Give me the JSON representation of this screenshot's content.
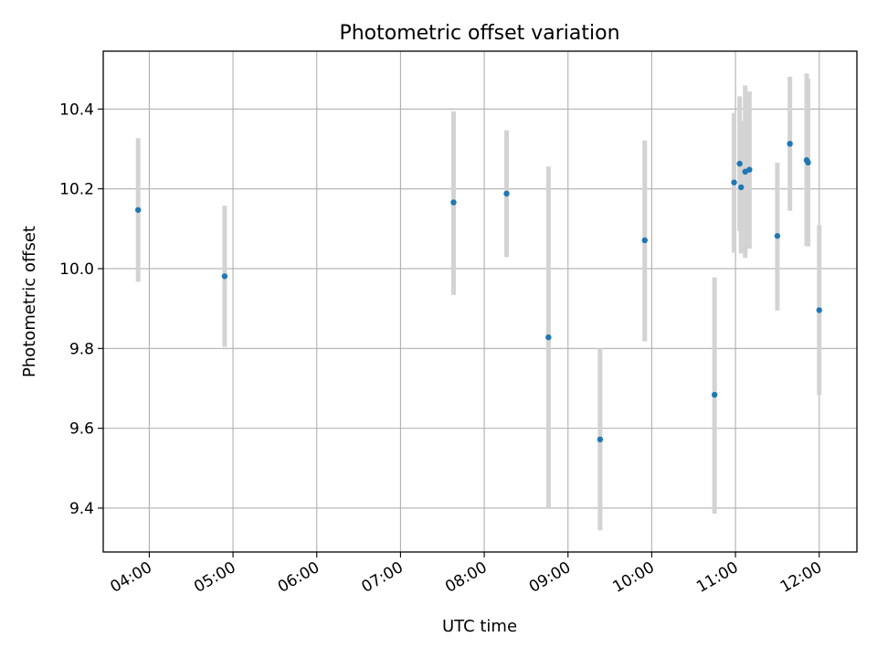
{
  "chart_data": {
    "type": "scatter",
    "title": "Photometric offset variation",
    "xlabel": "UTC time",
    "ylabel": "Photometric offset",
    "x_axis_type": "time",
    "xlim": [
      "03:27",
      "12:27"
    ],
    "ylim": [
      9.29,
      10.545
    ],
    "xticks": [
      "04:00",
      "05:00",
      "06:00",
      "07:00",
      "08:00",
      "09:00",
      "10:00",
      "11:00",
      "12:00"
    ],
    "yticks": [
      9.4,
      9.6,
      9.8,
      10.0,
      10.2,
      10.4
    ],
    "ytick_labels": [
      "9.4",
      "9.6",
      "9.8",
      "10.0",
      "10.2",
      "10.4"
    ],
    "grid": true,
    "marker_color": "#1f77b4",
    "errorbar_color": "#d3d3d3",
    "points": [
      {
        "x": "03:52",
        "y": 10.147,
        "yerr_low": 9.967,
        "yerr_high": 10.327
      },
      {
        "x": "04:54",
        "y": 9.981,
        "yerr_low": 9.804,
        "yerr_high": 10.158
      },
      {
        "x": "07:38",
        "y": 10.166,
        "yerr_low": 9.934,
        "yerr_high": 10.394
      },
      {
        "x": "08:16",
        "y": 10.188,
        "yerr_low": 10.029,
        "yerr_high": 10.347
      },
      {
        "x": "08:46",
        "y": 9.828,
        "yerr_low": 9.398,
        "yerr_high": 10.256
      },
      {
        "x": "09:23",
        "y": 9.572,
        "yerr_low": 9.344,
        "yerr_high": 9.8
      },
      {
        "x": "09:55",
        "y": 10.071,
        "yerr_low": 9.818,
        "yerr_high": 10.321
      },
      {
        "x": "10:45",
        "y": 9.684,
        "yerr_low": 9.386,
        "yerr_high": 9.978
      },
      {
        "x": "10:59",
        "y": 10.216,
        "yerr_low": 10.04,
        "yerr_high": 10.39
      },
      {
        "x": "11:03",
        "y": 10.263,
        "yerr_low": 10.094,
        "yerr_high": 10.432
      },
      {
        "x": "11:04",
        "y": 10.204,
        "yerr_low": 10.038,
        "yerr_high": 10.37
      },
      {
        "x": "11:07",
        "y": 10.243,
        "yerr_low": 10.027,
        "yerr_high": 10.459
      },
      {
        "x": "11:10",
        "y": 10.248,
        "yerr_low": 10.05,
        "yerr_high": 10.444
      },
      {
        "x": "11:30",
        "y": 10.082,
        "yerr_low": 9.895,
        "yerr_high": 10.266
      },
      {
        "x": "11:39",
        "y": 10.313,
        "yerr_low": 10.145,
        "yerr_high": 10.481
      },
      {
        "x": "11:51",
        "y": 10.272,
        "yerr_low": 10.057,
        "yerr_high": 10.489
      },
      {
        "x": "11:52",
        "y": 10.266,
        "yerr_low": 10.056,
        "yerr_high": 10.476
      },
      {
        "x": "12:00",
        "y": 9.896,
        "yerr_low": 9.683,
        "yerr_high": 10.109
      }
    ]
  }
}
